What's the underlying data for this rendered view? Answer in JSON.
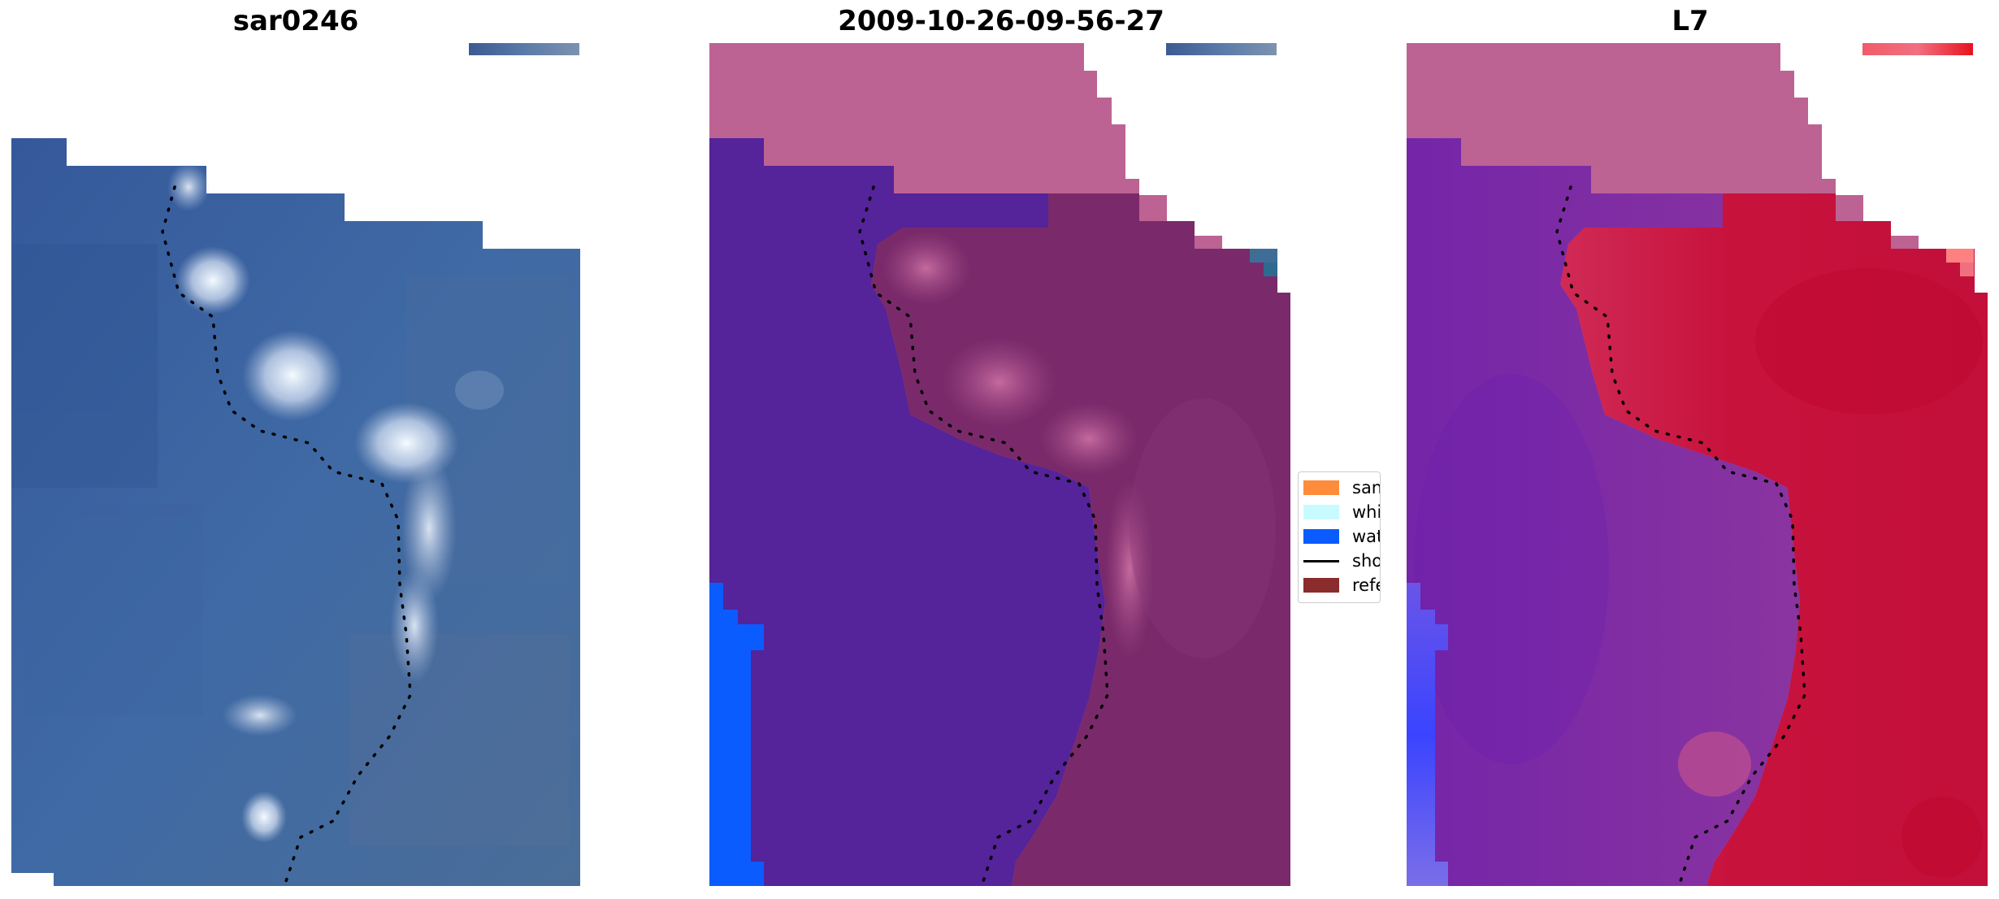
{
  "panels": [
    {
      "title": "sar0246"
    },
    {
      "title": "2009-10-26-09-56-27"
    },
    {
      "title": "L7"
    }
  ],
  "legend": {
    "items": [
      {
        "label": "sand",
        "color": "#ff8c3a",
        "kind": "patch"
      },
      {
        "label": "whitewater",
        "color": "#c8fbff",
        "kind": "patch"
      },
      {
        "label": "water",
        "color": "#0b5cff",
        "kind": "patch"
      },
      {
        "label": "shoreline",
        "color": "#000000",
        "kind": "line"
      },
      {
        "label": "reference",
        "color": "#8a2c2c",
        "kind": "patch"
      }
    ]
  },
  "colors": {
    "ocean_blue": "#3a5d96",
    "class_water_purple": "#55239a",
    "nodata_pink": "#bc6393",
    "sand_magenta": "#7a2a6a",
    "index_red": "#c4123a",
    "index_purple": "#6e2aa0"
  }
}
